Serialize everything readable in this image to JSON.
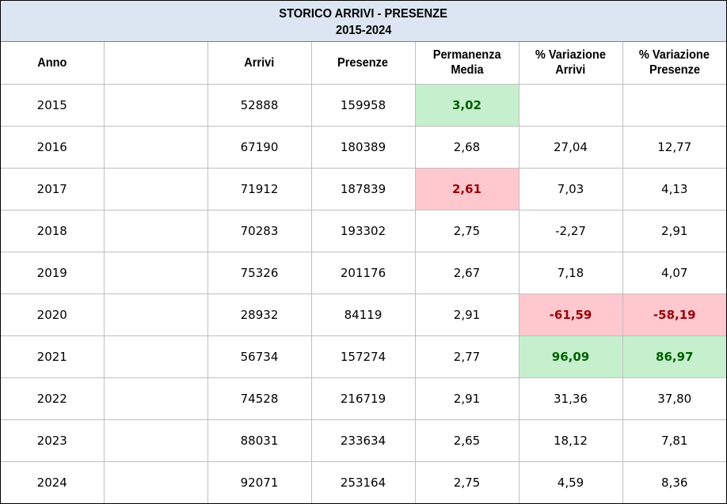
{
  "title": {
    "line1": "STORICO ARRIVI - PRESENZE",
    "line2": "2015-2024"
  },
  "columns": {
    "anno": "Anno",
    "blank": "",
    "arrivi": "Arrivi",
    "presenze": "Presenze",
    "permanenza_line1": "Permanenza",
    "permanenza_line2": "Media",
    "var_arrivi_line1": "% Variazione",
    "var_arrivi_line2": "Arrivi",
    "var_presenze_line1": "% Variazione",
    "var_presenze_line2": "Presenze"
  },
  "highlight_colors": {
    "good_fill": "#c6efce",
    "good_text": "#006100",
    "bad_fill": "#ffc7ce",
    "bad_text": "#9c0006",
    "title_fill": "#dce6f2"
  },
  "rows": [
    {
      "anno": "2015",
      "arrivi": "52888",
      "presenze": "159958",
      "permanenza": "3,02",
      "var_arrivi": "",
      "var_presenze": "",
      "hl_permanenza": "good",
      "hl_var_arrivi": "",
      "hl_var_presenze": ""
    },
    {
      "anno": "2016",
      "arrivi": "67190",
      "presenze": "180389",
      "permanenza": "2,68",
      "var_arrivi": "27,04",
      "var_presenze": "12,77",
      "hl_permanenza": "",
      "hl_var_arrivi": "",
      "hl_var_presenze": ""
    },
    {
      "anno": "2017",
      "arrivi": "71912",
      "presenze": "187839",
      "permanenza": "2,61",
      "var_arrivi": "7,03",
      "var_presenze": "4,13",
      "hl_permanenza": "bad",
      "hl_var_arrivi": "",
      "hl_var_presenze": ""
    },
    {
      "anno": "2018",
      "arrivi": "70283",
      "presenze": "193302",
      "permanenza": "2,75",
      "var_arrivi": "-2,27",
      "var_presenze": "2,91",
      "hl_permanenza": "",
      "hl_var_arrivi": "",
      "hl_var_presenze": ""
    },
    {
      "anno": "2019",
      "arrivi": "75326",
      "presenze": "201176",
      "permanenza": "2,67",
      "var_arrivi": "7,18",
      "var_presenze": "4,07",
      "hl_permanenza": "",
      "hl_var_arrivi": "",
      "hl_var_presenze": ""
    },
    {
      "anno": "2020",
      "arrivi": "28932",
      "presenze": "84119",
      "permanenza": "2,91",
      "var_arrivi": "-61,59",
      "var_presenze": "-58,19",
      "hl_permanenza": "",
      "hl_var_arrivi": "bad",
      "hl_var_presenze": "bad"
    },
    {
      "anno": "2021",
      "arrivi": "56734",
      "presenze": "157274",
      "permanenza": "2,77",
      "var_arrivi": "96,09",
      "var_presenze": "86,97",
      "hl_permanenza": "",
      "hl_var_arrivi": "good",
      "hl_var_presenze": "good"
    },
    {
      "anno": "2022",
      "arrivi": "74528",
      "presenze": "216719",
      "permanenza": "2,91",
      "var_arrivi": "31,36",
      "var_presenze": "37,80",
      "hl_permanenza": "",
      "hl_var_arrivi": "",
      "hl_var_presenze": ""
    },
    {
      "anno": "2023",
      "arrivi": "88031",
      "presenze": "233634",
      "permanenza": "2,65",
      "var_arrivi": "18,12",
      "var_presenze": "7,81",
      "hl_permanenza": "",
      "hl_var_arrivi": "",
      "hl_var_presenze": ""
    },
    {
      "anno": "2024",
      "arrivi": "92071",
      "presenze": "253164",
      "permanenza": "2,75",
      "var_arrivi": "4,59",
      "var_presenze": "8,36",
      "hl_permanenza": "",
      "hl_var_arrivi": "",
      "hl_var_presenze": ""
    }
  ]
}
